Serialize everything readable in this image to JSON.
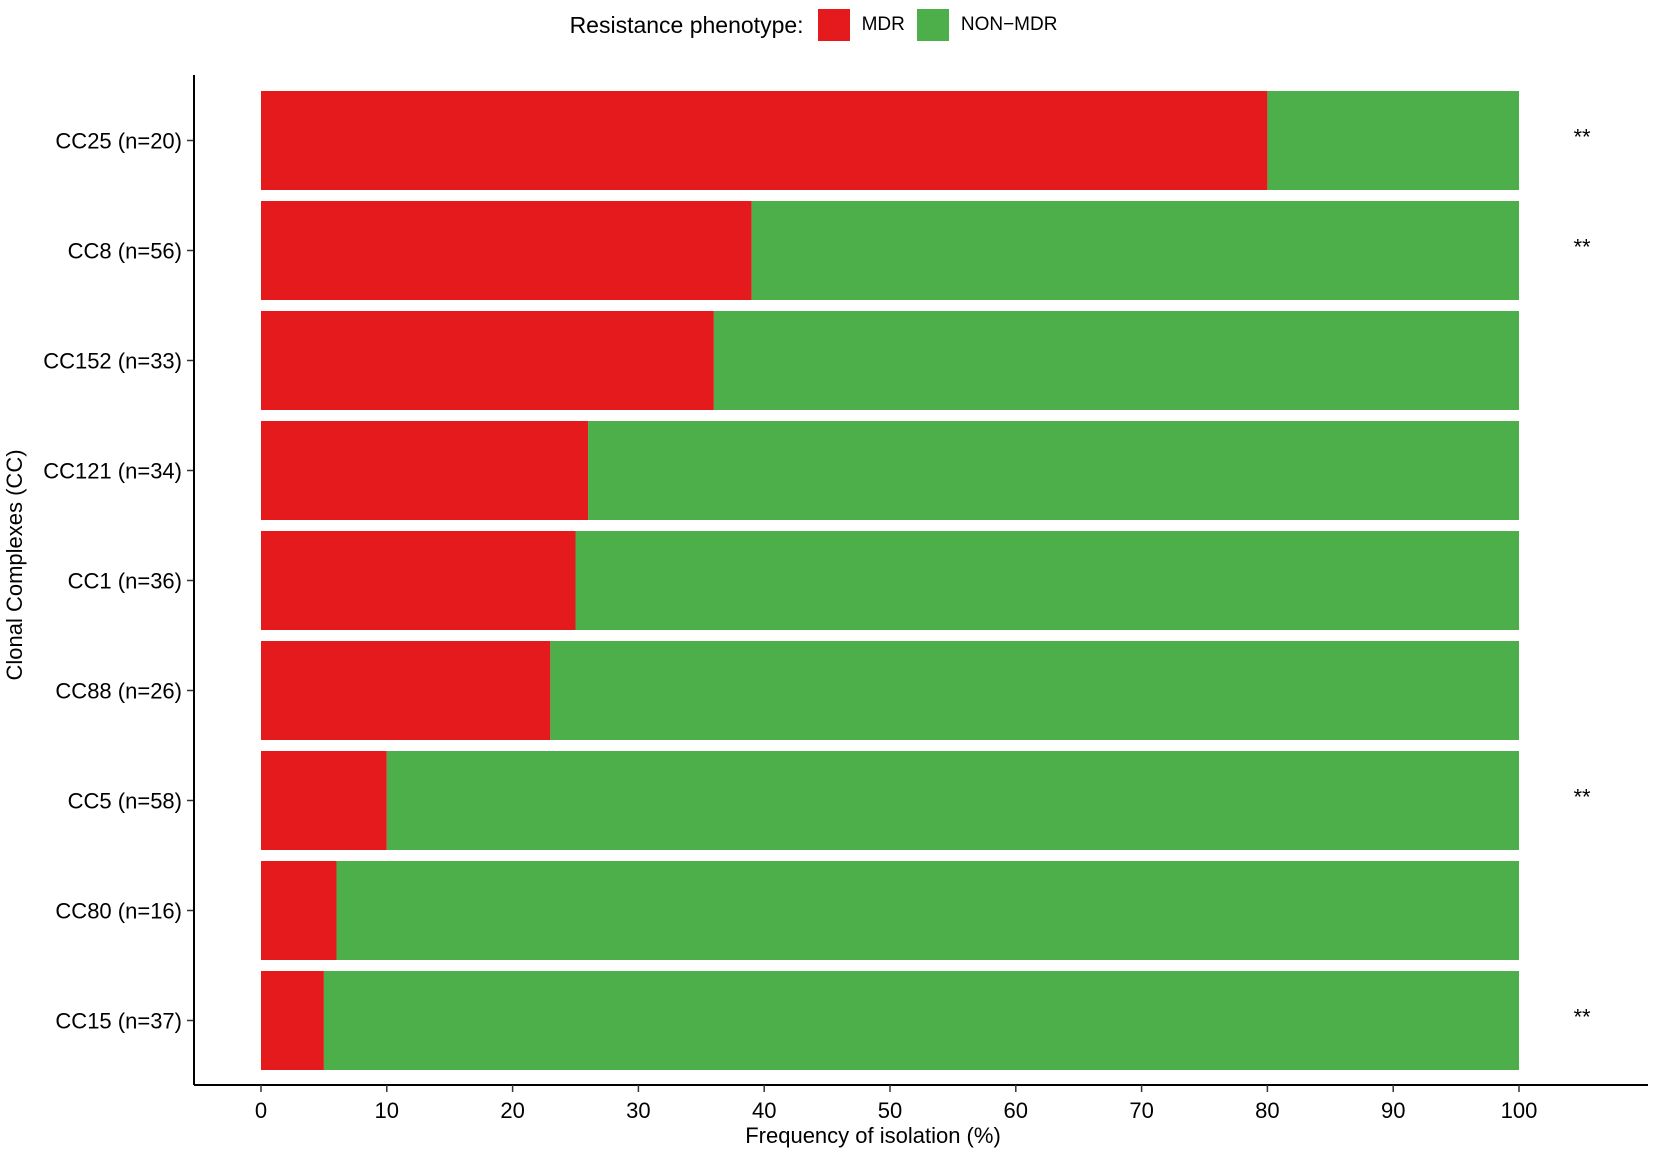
{
  "legend": {
    "title": "Resistance phenotype:",
    "items": [
      {
        "label": "MDR",
        "color": "#E41A1C"
      },
      {
        "label": "NON−MDR",
        "color": "#4DAF4A"
      }
    ]
  },
  "chart_data": {
    "type": "bar",
    "orientation": "horizontal",
    "stacked": true,
    "xlabel": "Frequency of isolation (%)",
    "ylabel": "Clonal Complexes (CC)",
    "xlim": [
      0,
      100
    ],
    "xticks": [
      0,
      10,
      20,
      30,
      40,
      50,
      60,
      70,
      80,
      90,
      100
    ],
    "categories": [
      "CC25 (n=20)",
      "CC8 (n=56)",
      "CC152 (n=33)",
      "CC121 (n=34)",
      "CC1 (n=36)",
      "CC88 (n=26)",
      "CC5 (n=58)",
      "CC80 (n=16)",
      "CC15 (n=37)"
    ],
    "series": [
      {
        "name": "MDR",
        "color": "#E41A1C",
        "values": [
          80,
          39,
          36,
          26,
          25,
          23,
          10,
          6,
          5
        ]
      },
      {
        "name": "NON−MDR",
        "color": "#4DAF4A",
        "values": [
          20,
          61,
          64,
          74,
          75,
          77,
          90,
          94,
          95
        ]
      }
    ],
    "annotations": [
      "**",
      "**",
      "",
      "",
      "",
      "",
      "**",
      "",
      "**"
    ],
    "grid": false,
    "legend_position": "top"
  }
}
